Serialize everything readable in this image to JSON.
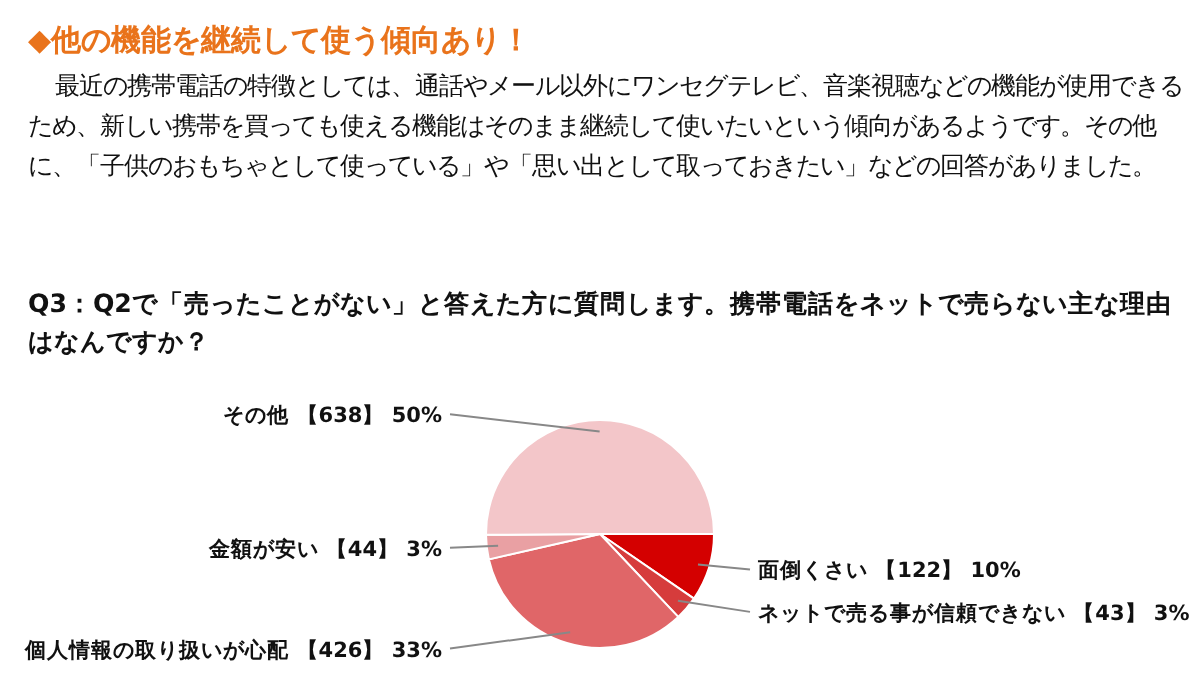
{
  "chart_data": {
    "type": "pie",
    "title": "Q3：Q2で「売ったことがない」と答えた方に質問します。携帯電話をネットで売らない主な理由はなんですか？",
    "annotations": [
      "◆他の機能を継続して使う傾向あり！",
      "最近の携帯電話の特徴としては、通話やメール以外にワンセグテレビ、音楽視聴などの機能が使用できるため、新しい携帯を買っても使える機能はそのまま継続して使いたいという傾向があるようです。その他に、「子供のおもちゃとして使っている」や「思い出として取っておきたい」などの回答がありました。"
    ],
    "categories": [
      "面倒くさい",
      "ネットで売る事が信頼できない",
      "個人情報の取り扱いが心配",
      "金額が安い",
      "その他"
    ],
    "values": [
      122,
      43,
      426,
      44,
      638
    ],
    "value_labels": [
      "【122】 10%",
      "【43】 3%",
      "【426】 33%",
      "【44】 3%",
      "【638】 50%"
    ],
    "colors": [
      "#d40000",
      "#d63c3c",
      "#e06668",
      "#e9a0a3",
      "#f3c6c9"
    ]
  }
}
